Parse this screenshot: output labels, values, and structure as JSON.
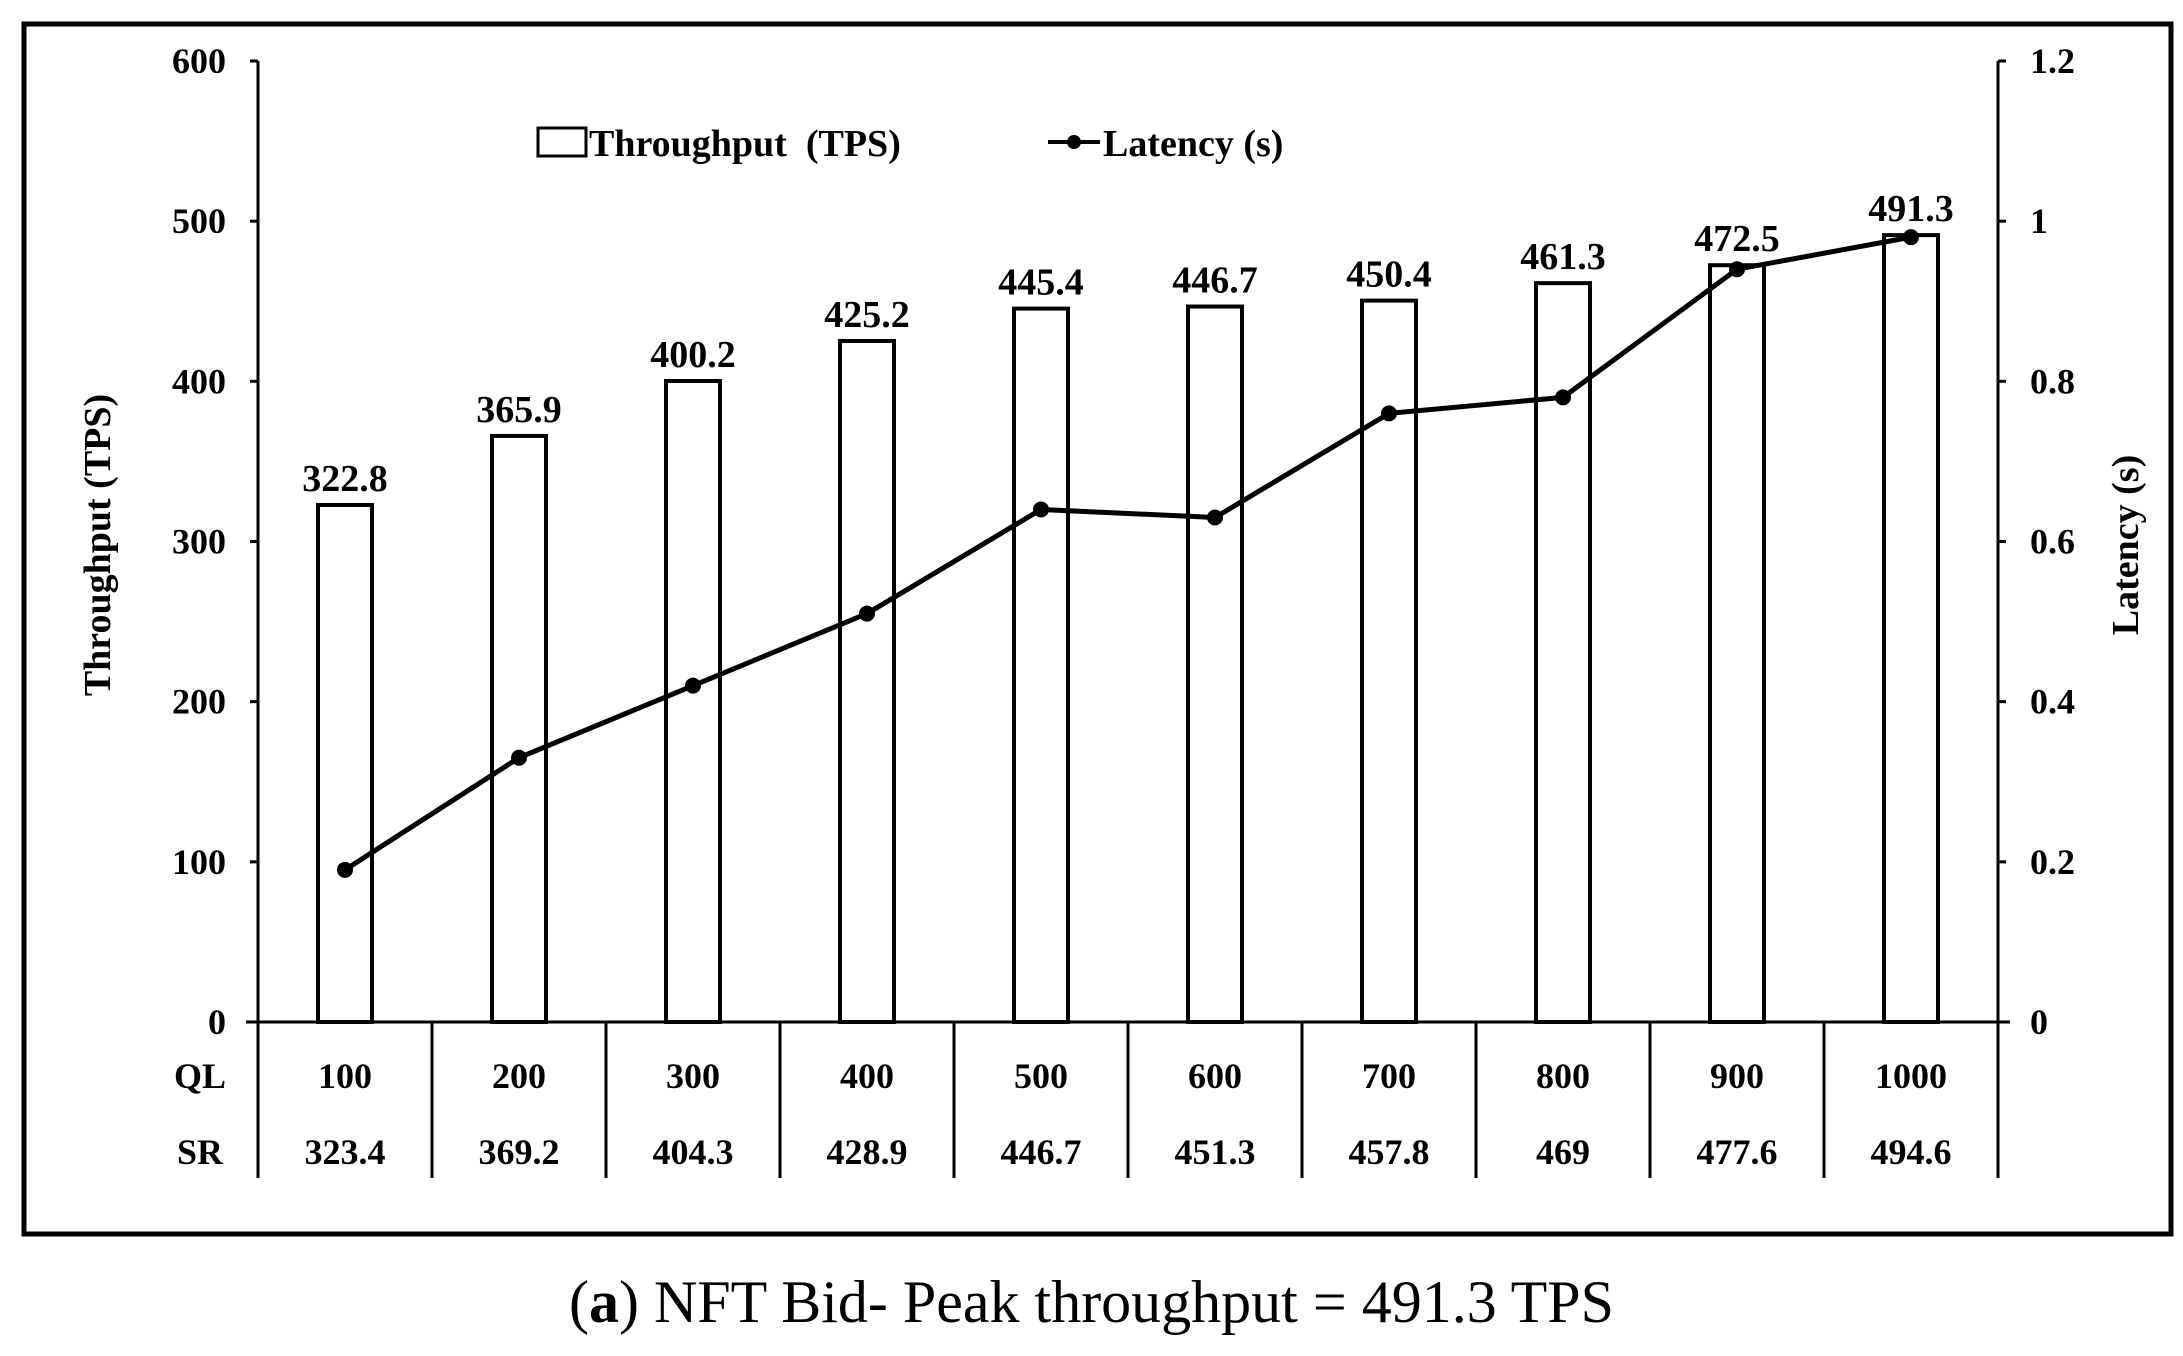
{
  "chart_data": {
    "type": "bar",
    "categories": [
      "100",
      "200",
      "300",
      "400",
      "500",
      "600",
      "700",
      "800",
      "900",
      "1000"
    ],
    "series": [
      {
        "name": "Throughput  (TPS)",
        "kind": "bar",
        "axis": "left",
        "values": [
          322.8,
          365.9,
          400.2,
          425.2,
          445.4,
          446.7,
          450.4,
          461.3,
          472.5,
          491.3
        ]
      },
      {
        "name": "Latency (s)",
        "kind": "line",
        "axis": "right",
        "values": [
          0.19,
          0.33,
          0.42,
          0.51,
          0.64,
          0.63,
          0.76,
          0.78,
          0.94,
          0.98
        ]
      }
    ],
    "data_labels": [
      "322.8",
      "365.9",
      "400.2",
      "425.2",
      "445.4",
      "446.7",
      "450.4",
      "461.3",
      "472.5",
      "491.3"
    ],
    "ylabel": "Throughput (TPS)",
    "y2label": "Latency (s)",
    "ylim": [
      0,
      600
    ],
    "y2lim": [
      0,
      1.2
    ],
    "yticks": [
      0,
      100,
      200,
      300,
      400,
      500,
      600
    ],
    "y2ticks": [
      "0",
      "0.2",
      "0.4",
      "0.6",
      "0.8",
      "1",
      "1.2"
    ],
    "legend_position": "top-center",
    "grid": false,
    "table": {
      "row_labels": [
        "QL",
        "SR"
      ],
      "ql": [
        "100",
        "200",
        "300",
        "400",
        "500",
        "600",
        "700",
        "800",
        "900",
        "1000"
      ],
      "sr": [
        "323.4",
        "369.2",
        "404.3",
        "428.9",
        "446.7",
        "451.3",
        "457.8",
        "469",
        "477.6",
        "494.6"
      ]
    }
  },
  "caption": {
    "label": "a",
    "text": "NFT Bid- Peak throughput = 491.3 TPS"
  }
}
